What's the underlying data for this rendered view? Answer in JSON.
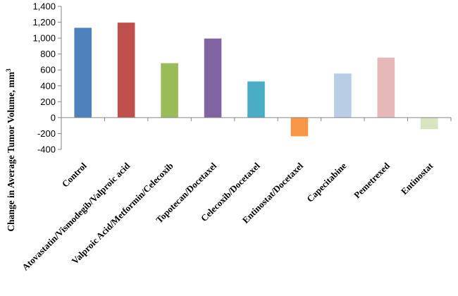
{
  "chart_data": {
    "type": "bar",
    "title": "",
    "xlabel": "",
    "ylabel": "Change in Average Tumor Volume, mm",
    "ylabel_superscript": "3",
    "ylim": [
      -400,
      1400
    ],
    "yticks": [
      "-400",
      "-200",
      "0",
      "200",
      "400",
      "600",
      "800",
      "1,000",
      "1,200",
      "1,400"
    ],
    "ytick_values": [
      -400,
      -200,
      0,
      200,
      400,
      600,
      800,
      1000,
      1200,
      1400
    ],
    "grid": false,
    "legend": "none",
    "categories": [
      "Control",
      "Atovastatin/Vismodegib/Valproic acid",
      "Valproic Acid/Metformin/Celecoxib",
      "Topotecan/Docetaxel",
      "Celecoxib/Docetaxel",
      "Entinostat/Docetaxel",
      "Capecitabine",
      "Pemetrexed",
      "Entinostat"
    ],
    "values": [
      1130,
      1195,
      685,
      995,
      455,
      -235,
      555,
      755,
      -145
    ],
    "colors": [
      "#4f81bd",
      "#c0504d",
      "#9bbb59",
      "#8064a2",
      "#4bacc6",
      "#f79646",
      "#b9cde5",
      "#e6b9b8",
      "#d7e4bd"
    ]
  }
}
